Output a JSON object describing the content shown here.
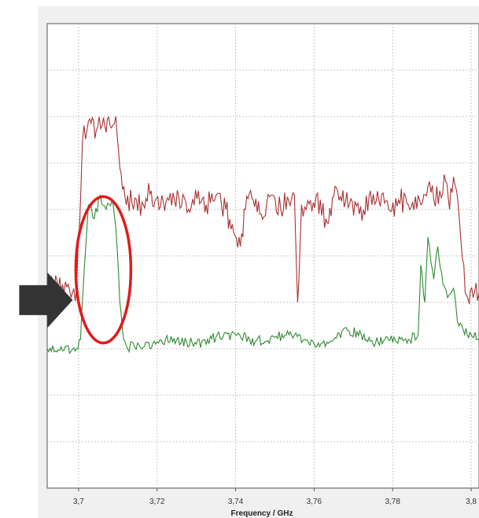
{
  "chart_data": {
    "type": "line",
    "title": "",
    "xlabel": "Frequency / GHz",
    "ylabel": "",
    "xlim": [
      3.692,
      3.802
    ],
    "ylim": [
      0,
      10
    ],
    "x_ticks": [
      3.7,
      3.72,
      3.74,
      3.76,
      3.78,
      3.8
    ],
    "x_tick_labels": [
      "3,7",
      "3,72",
      "3,74",
      "3,76",
      "3,78",
      "3,8"
    ],
    "grid": true,
    "legend": "none",
    "series": [
      {
        "color": "#a83232",
        "x": [
          3.692,
          3.6995,
          3.7005,
          3.701,
          3.7025,
          3.7045,
          3.706,
          3.708,
          3.7095,
          3.7105,
          3.7115,
          3.7125,
          3.714,
          3.7165,
          3.7185,
          3.7205,
          3.723,
          3.7255,
          3.728,
          3.7305,
          3.7325,
          3.735,
          3.7375,
          3.7395,
          3.7412,
          3.7425,
          3.7445,
          3.7465,
          3.749,
          3.7515,
          3.7535,
          3.755,
          3.7558,
          3.7568,
          3.758,
          3.7605,
          3.763,
          3.766,
          3.769,
          3.7715,
          3.774,
          3.7765,
          3.779,
          3.7815,
          3.784,
          3.7865,
          3.789,
          3.7905,
          3.792,
          3.7935,
          3.7945,
          3.7955,
          3.7963,
          3.797,
          3.7985,
          3.8005,
          3.802
        ],
        "y": [
          4.3,
          4.3,
          6.2,
          7.5,
          7.9,
          7.7,
          7.8,
          7.8,
          8.0,
          6.9,
          6.5,
          6.3,
          6.0,
          6.1,
          6.4,
          6.0,
          6.2,
          6.3,
          6.0,
          6.4,
          6.1,
          6.3,
          6.0,
          5.5,
          5.2,
          6.0,
          6.2,
          5.9,
          6.3,
          6.0,
          6.2,
          6.3,
          4.0,
          6.1,
          6.0,
          6.3,
          5.8,
          6.4,
          6.1,
          5.9,
          6.3,
          6.2,
          6.0,
          6.2,
          6.1,
          6.3,
          6.5,
          6.2,
          6.4,
          6.6,
          6.0,
          6.7,
          6.4,
          5.8,
          4.2,
          4.1,
          4.2
        ]
      },
      {
        "color": "#2e8b2e",
        "x": [
          3.692,
          3.6995,
          3.7005,
          3.7015,
          3.7025,
          3.704,
          3.7055,
          3.707,
          3.7085,
          3.7095,
          3.7105,
          3.7115,
          3.7125,
          3.714,
          3.716,
          3.72,
          3.725,
          3.73,
          3.735,
          3.74,
          3.745,
          3.75,
          3.755,
          3.76,
          3.765,
          3.7685,
          3.772,
          3.775,
          3.778,
          3.781,
          3.784,
          3.7865,
          3.7872,
          3.7882,
          3.789,
          3.7905,
          3.7915,
          3.7928,
          3.794,
          3.7955,
          3.7965,
          3.798,
          3.8,
          3.802
        ],
        "y": [
          3.0,
          3.0,
          3.2,
          4.8,
          6.1,
          5.8,
          6.3,
          6.0,
          6.2,
          5.6,
          4.0,
          3.2,
          3.0,
          3.1,
          3.0,
          3.15,
          3.2,
          3.1,
          3.25,
          3.3,
          3.15,
          3.25,
          3.3,
          3.1,
          3.2,
          3.4,
          3.3,
          3.1,
          3.2,
          3.15,
          3.2,
          3.3,
          4.8,
          4.0,
          5.4,
          4.5,
          5.2,
          4.4,
          4.1,
          4.3,
          3.6,
          3.4,
          3.3,
          3.2
        ]
      }
    ],
    "annotations": [
      {
        "type": "ellipse",
        "color": "#e01b1b",
        "x": 3.7063,
        "y": 4.7
      },
      {
        "type": "arrow",
        "color": "#333333",
        "pointing_to_x": 3.6995,
        "pointing_to_y": 4.3,
        "direction": "right"
      }
    ]
  }
}
